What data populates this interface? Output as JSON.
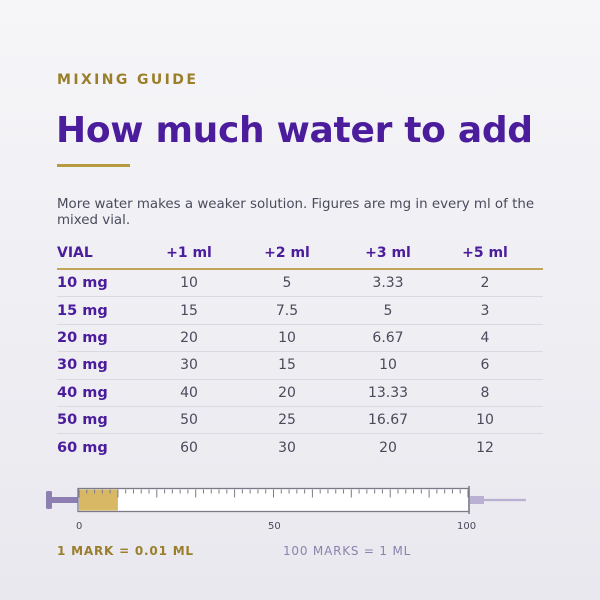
{
  "header": {
    "eyebrow": "MIXING GUIDE",
    "title": "How much water to add",
    "intro": "More water makes a weaker solution. Figures are mg in every ml of the mixed vial."
  },
  "table": {
    "columns": [
      "VIAL",
      "+1 ml",
      "+2 ml",
      "+3 ml",
      "+5 ml"
    ],
    "rows": [
      [
        "10 mg",
        "10",
        "5",
        "3.33",
        "2"
      ],
      [
        "15 mg",
        "15",
        "7.5",
        "5",
        "3"
      ],
      [
        "20 mg",
        "20",
        "10",
        "6.67",
        "4"
      ],
      [
        "30 mg",
        "30",
        "15",
        "10",
        "6"
      ],
      [
        "40 mg",
        "40",
        "20",
        "13.33",
        "8"
      ],
      [
        "50 mg",
        "50",
        "25",
        "16.67",
        "10"
      ],
      [
        "60 mg",
        "60",
        "30",
        "20",
        "12"
      ]
    ]
  },
  "syringe": {
    "scale_labels": [
      "0",
      "50",
      "100"
    ],
    "filled_marks": 10,
    "total_marks": 100
  },
  "footer": {
    "left": "1 MARK = 0.01 ML",
    "right": "100 MARKS = 1 ML"
  },
  "colors": {
    "accent_purple": "#4b1c9c",
    "accent_gold": "#b79a3e",
    "fill": "#d9b865",
    "plunger": "#8e7fb3"
  }
}
